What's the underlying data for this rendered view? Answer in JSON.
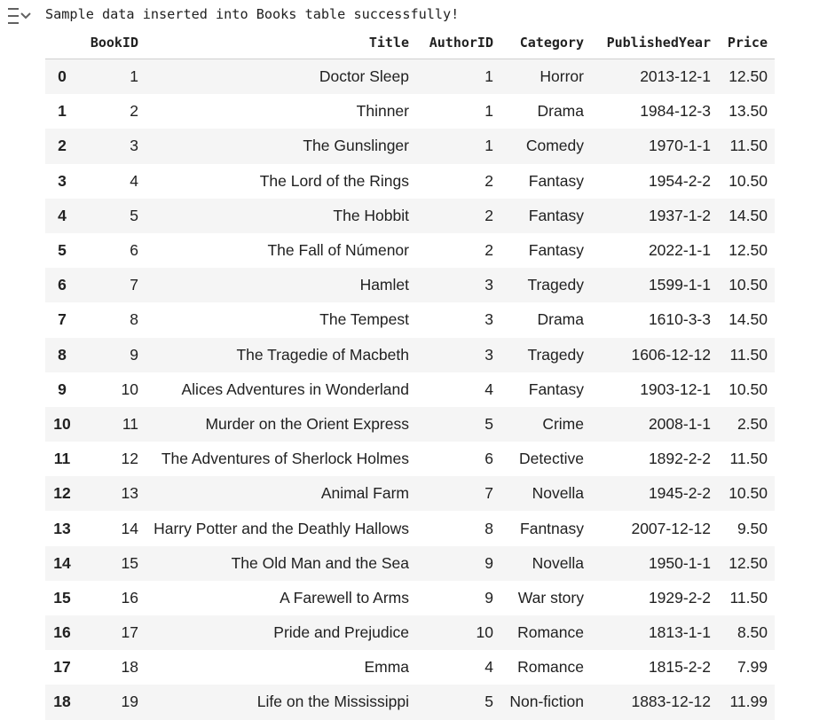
{
  "output": {
    "icon": "output-toggle-icon",
    "text": "Sample data inserted into Books table successfully!"
  },
  "table": {
    "columns": [
      "",
      "BookID",
      "Title",
      "AuthorID",
      "Category",
      "PublishedYear",
      "Price"
    ],
    "rows": [
      {
        "index": "0",
        "BookID": "1",
        "Title": "Doctor Sleep",
        "AuthorID": "1",
        "Category": "Horror",
        "PublishedYear": "2013-12-1",
        "Price": "12.50"
      },
      {
        "index": "1",
        "BookID": "2",
        "Title": "Thinner",
        "AuthorID": "1",
        "Category": "Drama",
        "PublishedYear": "1984-12-3",
        "Price": "13.50"
      },
      {
        "index": "2",
        "BookID": "3",
        "Title": "The Gunslinger",
        "AuthorID": "1",
        "Category": "Comedy",
        "PublishedYear": "1970-1-1",
        "Price": "11.50"
      },
      {
        "index": "3",
        "BookID": "4",
        "Title": "The Lord of the Rings",
        "AuthorID": "2",
        "Category": "Fantasy",
        "PublishedYear": "1954-2-2",
        "Price": "10.50"
      },
      {
        "index": "4",
        "BookID": "5",
        "Title": "The Hobbit",
        "AuthorID": "2",
        "Category": "Fantasy",
        "PublishedYear": "1937-1-2",
        "Price": "14.50"
      },
      {
        "index": "5",
        "BookID": "6",
        "Title": "The Fall of Númenor",
        "AuthorID": "2",
        "Category": "Fantasy",
        "PublishedYear": "2022-1-1",
        "Price": "12.50"
      },
      {
        "index": "6",
        "BookID": "7",
        "Title": "Hamlet",
        "AuthorID": "3",
        "Category": "Tragedy",
        "PublishedYear": "1599-1-1",
        "Price": "10.50"
      },
      {
        "index": "7",
        "BookID": "8",
        "Title": "The Tempest",
        "AuthorID": "3",
        "Category": "Drama",
        "PublishedYear": "1610-3-3",
        "Price": "14.50"
      },
      {
        "index": "8",
        "BookID": "9",
        "Title": "The Tragedie of Macbeth",
        "AuthorID": "3",
        "Category": "Tragedy",
        "PublishedYear": "1606-12-12",
        "Price": "11.50"
      },
      {
        "index": "9",
        "BookID": "10",
        "Title": "Alices Adventures in Wonderland",
        "AuthorID": "4",
        "Category": "Fantasy",
        "PublishedYear": "1903-12-1",
        "Price": "10.50"
      },
      {
        "index": "10",
        "BookID": "11",
        "Title": "Murder on the Orient Express",
        "AuthorID": "5",
        "Category": "Crime",
        "PublishedYear": "2008-1-1",
        "Price": "2.50"
      },
      {
        "index": "11",
        "BookID": "12",
        "Title": "The Adventures of Sherlock Holmes",
        "AuthorID": "6",
        "Category": "Detective",
        "PublishedYear": "1892-2-2",
        "Price": "11.50"
      },
      {
        "index": "12",
        "BookID": "13",
        "Title": "Animal Farm",
        "AuthorID": "7",
        "Category": "Novella",
        "PublishedYear": "1945-2-2",
        "Price": "10.50"
      },
      {
        "index": "13",
        "BookID": "14",
        "Title": "Harry Potter and the Deathly Hallows",
        "AuthorID": "8",
        "Category": "Fantnasy",
        "PublishedYear": "2007-12-12",
        "Price": "9.50"
      },
      {
        "index": "14",
        "BookID": "15",
        "Title": "The Old Man and the Sea",
        "AuthorID": "9",
        "Category": "Novella",
        "PublishedYear": "1950-1-1",
        "Price": "12.50"
      },
      {
        "index": "15",
        "BookID": "16",
        "Title": "A Farewell to Arms",
        "AuthorID": "9",
        "Category": "War story",
        "PublishedYear": "1929-2-2",
        "Price": "11.50"
      },
      {
        "index": "16",
        "BookID": "17",
        "Title": "Pride and Prejudice",
        "AuthorID": "10",
        "Category": "Romance",
        "PublishedYear": "1813-1-1",
        "Price": "8.50"
      },
      {
        "index": "17",
        "BookID": "18",
        "Title": "Emma",
        "AuthorID": "4",
        "Category": "Romance",
        "PublishedYear": "1815-2-2",
        "Price": "7.99"
      },
      {
        "index": "18",
        "BookID": "19",
        "Title": "Life on the Mississippi",
        "AuthorID": "5",
        "Category": "Non-fiction",
        "PublishedYear": "1883-12-12",
        "Price": "11.99"
      }
    ]
  },
  "colors": {
    "stripe": "#f5f5f5",
    "text": "#212121",
    "icon": "#616161"
  }
}
